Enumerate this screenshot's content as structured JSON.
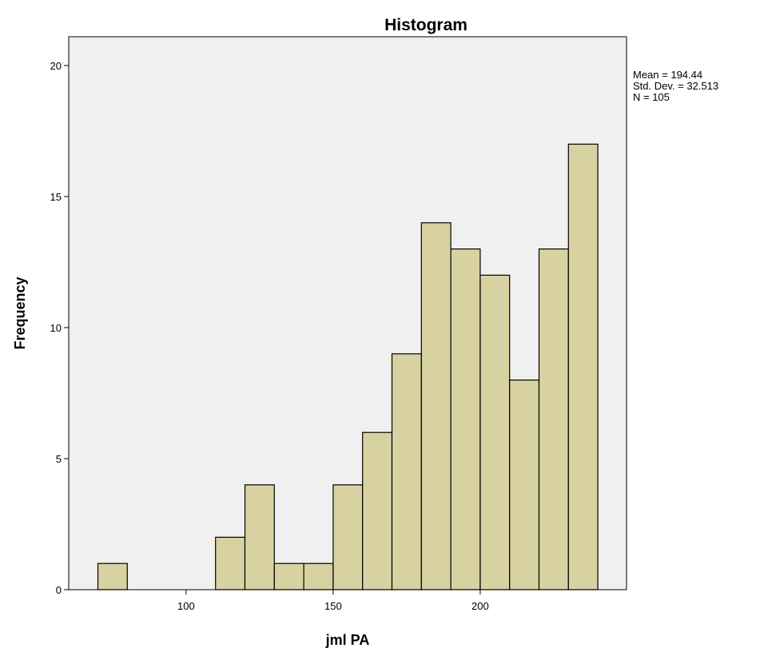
{
  "chart_data": {
    "type": "bar",
    "title": "Histogram",
    "xlabel": "jml PA",
    "ylabel": "Frequency",
    "bin_width": 10,
    "bins": [
      {
        "start": 70,
        "end": 80,
        "count": 1
      },
      {
        "start": 80,
        "end": 90,
        "count": 0
      },
      {
        "start": 90,
        "end": 100,
        "count": 0
      },
      {
        "start": 100,
        "end": 110,
        "count": 0
      },
      {
        "start": 110,
        "end": 120,
        "count": 2
      },
      {
        "start": 120,
        "end": 130,
        "count": 4
      },
      {
        "start": 130,
        "end": 140,
        "count": 1
      },
      {
        "start": 140,
        "end": 150,
        "count": 1
      },
      {
        "start": 150,
        "end": 160,
        "count": 4
      },
      {
        "start": 160,
        "end": 170,
        "count": 6
      },
      {
        "start": 170,
        "end": 180,
        "count": 9
      },
      {
        "start": 180,
        "end": 190,
        "count": 14
      },
      {
        "start": 190,
        "end": 200,
        "count": 13
      },
      {
        "start": 200,
        "end": 210,
        "count": 12
      },
      {
        "start": 210,
        "end": 220,
        "count": 8
      },
      {
        "start": 220,
        "end": 230,
        "count": 13
      },
      {
        "start": 230,
        "end": 240,
        "count": 17
      }
    ],
    "xlim": [
      60,
      250
    ],
    "ylim": [
      0,
      21
    ],
    "x_ticks": [
      100,
      150,
      200
    ],
    "y_ticks": [
      0,
      5,
      10,
      15,
      20
    ],
    "grid": false,
    "legend": "none",
    "stats": {
      "mean_label": "Mean = 194.44",
      "std_label": "Std. Dev. = 32.513",
      "n_label": "N = 105",
      "placement": "right-top"
    },
    "colors": {
      "bar_fill": "#d8d2a2",
      "bar_stroke": "#000000",
      "plot_background": "#f0f0f0",
      "page_background": "#ffffff"
    }
  }
}
